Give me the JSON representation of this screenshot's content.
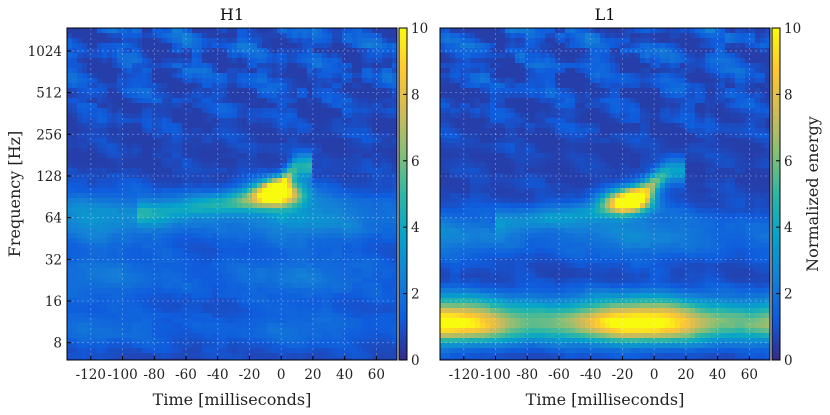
{
  "chart_data": {
    "type": "heatmap",
    "colorscale": [
      "#352a87",
      "#0f5cdd",
      "#1481d6",
      "#06a4ca",
      "#2eb7a4",
      "#87bf77",
      "#d1bb59",
      "#fec832",
      "#f9fb0e"
    ],
    "shared_yaxis": {
      "label": "Frequency [Hz]",
      "scale": "log2",
      "ylim": [
        6,
        1500
      ],
      "ticks": [
        8,
        16,
        32,
        64,
        128,
        256,
        512,
        1024
      ],
      "tick_labels": [
        "8",
        "16",
        "32",
        "64",
        "128",
        "256",
        "512",
        "1024"
      ]
    },
    "panels": [
      {
        "title": "H1",
        "xlabel": "Time [milliseconds]",
        "xlim": [
          -135,
          73
        ],
        "xticks": [
          -120,
          -100,
          -80,
          -60,
          -40,
          -20,
          0,
          20,
          40,
          60
        ],
        "xtick_labels": [
          "-120",
          "-100",
          "-80",
          "-60",
          "-40",
          "-20",
          "0",
          "20",
          "40",
          "60"
        ],
        "colorbar": {
          "label": "",
          "range": [
            0,
            10
          ],
          "ticks": [
            0,
            2,
            4,
            6,
            8,
            10
          ],
          "tick_labels": [
            "0",
            "2",
            "4",
            "6",
            "8",
            "10"
          ]
        },
        "features": [
          {
            "kind": "background",
            "energy": 0.5
          },
          {
            "kind": "band",
            "freq": 64,
            "freq_width_oct": 0.6,
            "energy": 2.5
          },
          {
            "kind": "band",
            "freq": 24,
            "freq_width_oct": 0.6,
            "energy": 1.5
          },
          {
            "kind": "band",
            "freq": 10,
            "freq_width_oct": 0.5,
            "energy": 1.2
          },
          {
            "kind": "chirp",
            "t": [
              -80,
              -40,
              -15,
              0,
              10
            ],
            "f": [
              70,
              80,
              90,
              105,
              150
            ],
            "energy": [
              2.5,
              3.5,
              6,
              8.5,
              5
            ]
          },
          {
            "kind": "blob",
            "t": 0,
            "freq": 95,
            "energy": 8.8
          }
        ]
      },
      {
        "title": "L1",
        "xlabel": "Time [milliseconds]",
        "xlim": [
          -135,
          73
        ],
        "xticks": [
          -120,
          -100,
          -80,
          -60,
          -40,
          -20,
          0,
          20,
          40,
          60
        ],
        "xtick_labels": [
          "-120",
          "-100",
          "-80",
          "-60",
          "-40",
          "-20",
          "0",
          "20",
          "40",
          "60"
        ],
        "colorbar": {
          "label": "Normalized energy",
          "range": [
            0,
            10
          ],
          "ticks": [
            0,
            2,
            4,
            6,
            8,
            10
          ],
          "tick_labels": [
            "0",
            "2",
            "4",
            "6",
            "8",
            "10"
          ]
        },
        "features": [
          {
            "kind": "background",
            "energy": 0.5
          },
          {
            "kind": "band",
            "freq": 11,
            "freq_width_oct": 0.45,
            "energy": 10
          },
          {
            "kind": "band",
            "freq": 16,
            "freq_width_oct": 0.35,
            "energy": 1.8
          },
          {
            "kind": "band",
            "freq": 48,
            "freq_width_oct": 0.6,
            "energy": 2
          },
          {
            "kind": "chirp",
            "t": [
              -90,
              -40,
              -20,
              -5,
              10
            ],
            "f": [
              60,
              70,
              80,
              100,
              140
            ],
            "energy": [
              2,
              3,
              5,
              7.5,
              4
            ]
          },
          {
            "kind": "blob",
            "t": -15,
            "freq": 85,
            "energy": 8.2
          }
        ]
      }
    ]
  }
}
